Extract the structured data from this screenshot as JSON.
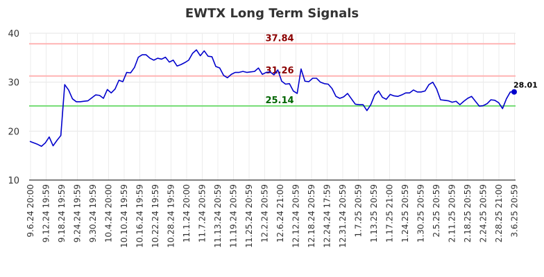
{
  "chart_data": {
    "type": "line",
    "title": "EWTX Long Term Signals",
    "ylim": [
      10,
      40
    ],
    "yticks": [
      10,
      20,
      30,
      40
    ],
    "grid": true,
    "x_ticks": [
      "9.6.24 20:00",
      "9.12.24 19:59",
      "9.18.24 19:59",
      "9.24.24 19:59",
      "9.30.24 19:59",
      "10.4.24 20:00",
      "10.10.24 19:59",
      "10.16.24 19:59",
      "10.22.24 19:59",
      "10.28.24 19:59",
      "11.1.24 20:00",
      "11.7.24 20:59",
      "11.13.24 20:59",
      "11.19.24 20:59",
      "11.25.24 20:59",
      "12.2.24 20:59",
      "12.6.24 21:00",
      "12.12.24 20:59",
      "12.18.24 20:59",
      "12.24.24 17:59",
      "12.31.24 20:59",
      "1.7.25 20:59",
      "1.13.25 20:59",
      "1.17.25 21:00",
      "1.24.25 20:59",
      "1.30.25 20:59",
      "2.5.25 20:59",
      "2.11.25 20:59",
      "2.18.25 20:59",
      "2.24.25 20:59",
      "2.28.25 21:00",
      "3.6.25 20:59"
    ],
    "reference_lines": [
      {
        "value": 37.84,
        "label": "37.84",
        "line_color": "#ffb3b3",
        "label_color": "#8b0000"
      },
      {
        "value": 31.26,
        "label": "31.26",
        "line_color": "#ffb3b3",
        "label_color": "#8b0000"
      },
      {
        "value": 25.14,
        "label": "25.14",
        "line_color": "#77dd77",
        "label_color": "#006400"
      }
    ],
    "last_value_label": "28.01",
    "series": [
      {
        "color": "#0000cc",
        "values": [
          17.9,
          17.6,
          17.3,
          16.9,
          17.6,
          18.8,
          17.0,
          18.1,
          19.1,
          29.5,
          28.4,
          26.6,
          26.0,
          26.0,
          26.1,
          26.2,
          26.8,
          27.4,
          27.3,
          26.7,
          28.5,
          27.8,
          28.6,
          30.4,
          30.1,
          32.0,
          31.9,
          33.0,
          35.1,
          35.6,
          35.6,
          34.9,
          34.5,
          34.9,
          34.7,
          35.1,
          34.1,
          34.5,
          33.3,
          33.6,
          34.0,
          34.5,
          35.9,
          36.6,
          35.4,
          36.4,
          35.3,
          35.2,
          33.2,
          32.9,
          31.4,
          30.9,
          31.6,
          32.0,
          32.0,
          32.2,
          32.0,
          32.1,
          32.2,
          32.9,
          31.6,
          32.0,
          32.1,
          31.5,
          32.5,
          30.2,
          29.6,
          29.7,
          28.2,
          27.7,
          32.7,
          30.2,
          30.1,
          30.8,
          30.8,
          30.0,
          29.7,
          29.6,
          28.7,
          27.1,
          26.7,
          27.0,
          27.7,
          26.6,
          25.5,
          25.4,
          25.4,
          24.2,
          25.4,
          27.4,
          28.2,
          26.9,
          26.5,
          27.5,
          27.2,
          27.1,
          27.4,
          27.8,
          27.8,
          28.4,
          28.0,
          28.0,
          28.2,
          29.5,
          30.0,
          28.6,
          26.4,
          26.3,
          26.2,
          25.9,
          26.1,
          25.4,
          26.1,
          26.7,
          27.1,
          26.1,
          25.1,
          25.2,
          25.6,
          26.4,
          26.3,
          25.8,
          24.6,
          26.6,
          28.0,
          28.01
        ]
      }
    ]
  }
}
